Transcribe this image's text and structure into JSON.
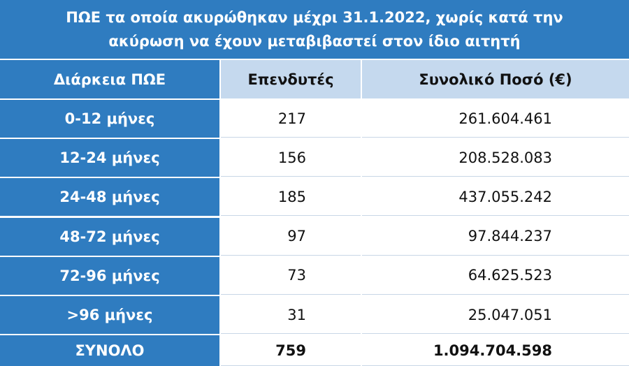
{
  "header": {
    "title": "ΠΩΕ τα οποία ακυρώθηκαν μέχρι 31.1.2022, χωρίς κατά την ακύρωση να έχουν μεταβιβαστεί στον ίδιο αιτητή"
  },
  "table": {
    "columns": [
      "Διάρκεια ΠΩΕ",
      "Επενδυτές",
      "Συνολικό Ποσό (€)"
    ],
    "rows": [
      [
        "0-12 μήνες",
        "217",
        "261.604.461"
      ],
      [
        "12-24 μήνες",
        "156",
        "208.528.083"
      ],
      [
        "24-48 μήνες",
        "185",
        "437.055.242"
      ],
      [
        "48-72 μήνες",
        "97",
        "97.844.237"
      ],
      [
        "72-96 μήνες",
        "73",
        "64.625.523"
      ],
      [
        ">96 μήνες",
        "31",
        "25.047.051"
      ]
    ],
    "total": [
      "ΣΥΝΟΛΟ",
      "759",
      "1.094.704.598"
    ]
  }
}
